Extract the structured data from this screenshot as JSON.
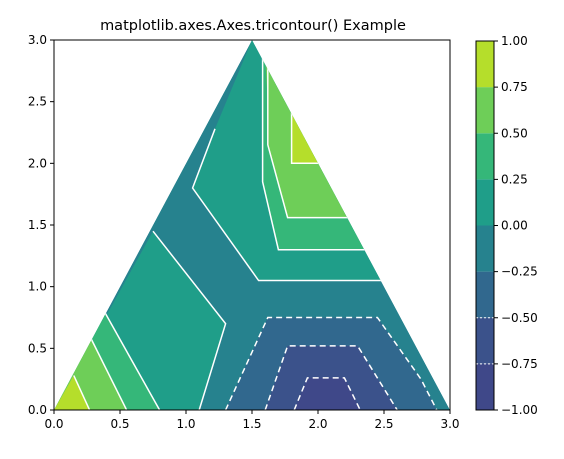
{
  "chart_data": {
    "type": "tricontour",
    "title": "matplotlib.axes.Axes.tricontour() Example",
    "xlabel": "",
    "ylabel": "",
    "xlim": [
      0.0,
      3.0
    ],
    "ylim": [
      0.0,
      3.0
    ],
    "x_ticks": [
      "0.0",
      "0.5",
      "1.0",
      "1.5",
      "2.0",
      "2.5",
      "3.0"
    ],
    "y_ticks": [
      "0.0",
      "0.5",
      "1.0",
      "1.5",
      "2.0",
      "2.5",
      "3.0"
    ],
    "triangle_vertices": [
      [
        0.0,
        0.0
      ],
      [
        1.5,
        3.0
      ],
      [
        3.0,
        0.0
      ]
    ],
    "grid": false,
    "colorbar": {
      "placement": "right",
      "levels": [
        -1.0,
        -0.75,
        -0.5,
        -0.25,
        0.0,
        0.25,
        0.5,
        0.75,
        1.0
      ],
      "tick_labels": [
        "−1.00",
        "−0.75",
        "−0.50",
        "−0.25",
        "0.00",
        "0.25",
        "0.50",
        "0.75",
        "1.00"
      ],
      "band_colors": [
        "#3f4889",
        "#3b528b",
        "#31688e",
        "#26828e",
        "#1f9e89",
        "#35b779",
        "#6ece58",
        "#b5de2b",
        "#dde318"
      ]
    },
    "contour_lines": {
      "color": "#ffffff",
      "negative_style": "dashed",
      "positive_style": "solid"
    }
  }
}
